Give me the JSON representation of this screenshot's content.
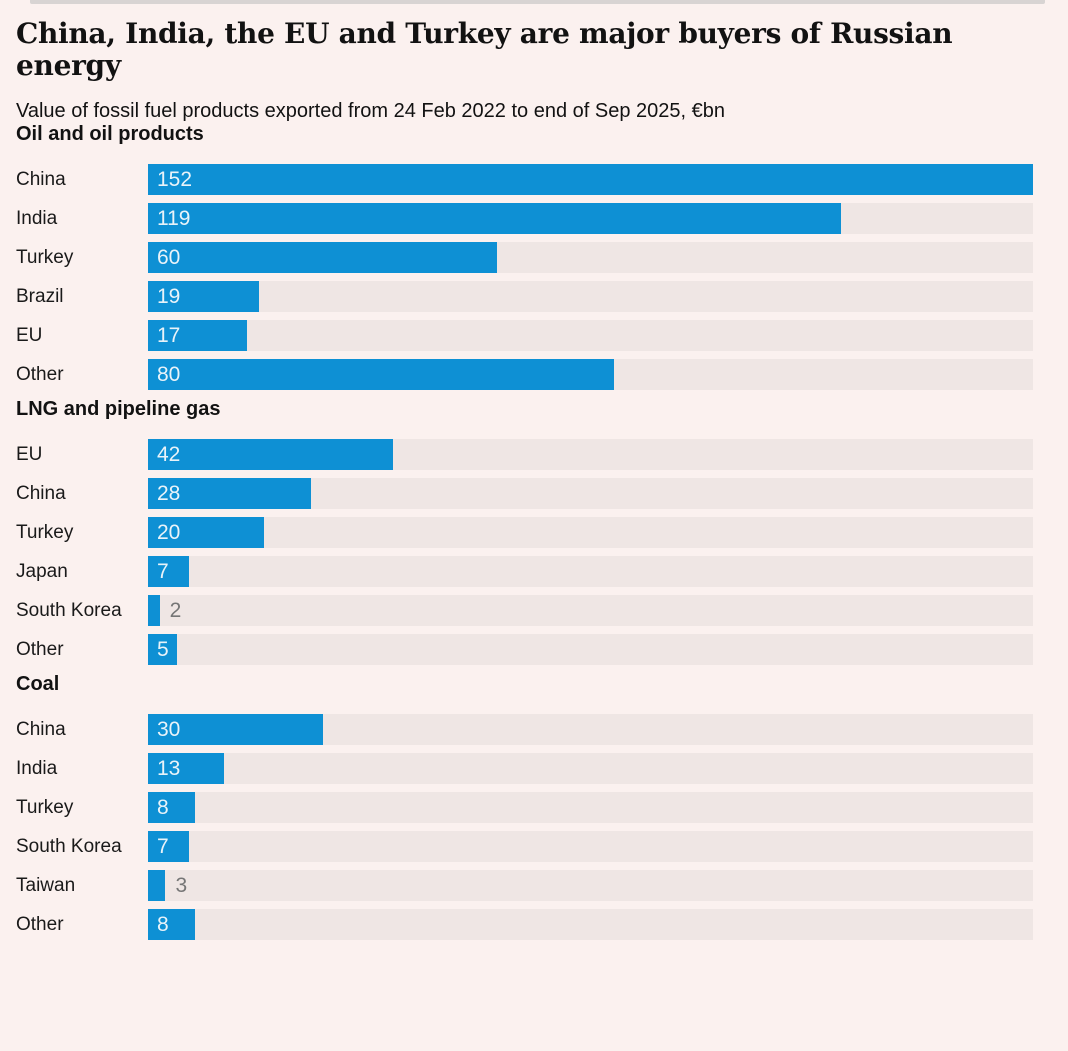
{
  "page": {
    "title": "China, India, the EU and Turkey are major buyers of Russian energy",
    "subtitle": "Value of fossil fuel products exported from 24 Feb 2022 to end of Sep 2025, €bn"
  },
  "colors": {
    "background": "#fbf1ef",
    "bar": "#0e90d4",
    "track": "#efe6e4",
    "text": "#121212",
    "value_inside": "#e9f3f9",
    "value_outside": "#767676"
  },
  "chart_data": [
    {
      "type": "bar",
      "orientation": "horizontal",
      "title": "Oil and oil products",
      "categories": [
        "China",
        "India",
        "Turkey",
        "Brazil",
        "EU",
        "Other"
      ],
      "values": [
        152,
        119,
        60,
        19,
        17,
        80
      ],
      "xmax": 152,
      "unit": "€bn",
      "grid": false,
      "legend": false
    },
    {
      "type": "bar",
      "orientation": "horizontal",
      "title": "LNG and pipeline gas",
      "categories": [
        "EU",
        "China",
        "Turkey",
        "Japan",
        "South Korea",
        "Other"
      ],
      "values": [
        42,
        28,
        20,
        7,
        2,
        5
      ],
      "xmax": 152,
      "unit": "€bn",
      "grid": false,
      "legend": false
    },
    {
      "type": "bar",
      "orientation": "horizontal",
      "title": "Coal",
      "categories": [
        "China",
        "India",
        "Turkey",
        "South Korea",
        "Taiwan",
        "Other"
      ],
      "values": [
        30,
        13,
        8,
        7,
        3,
        8
      ],
      "xmax": 152,
      "unit": "€bn",
      "grid": false,
      "legend": false
    }
  ]
}
